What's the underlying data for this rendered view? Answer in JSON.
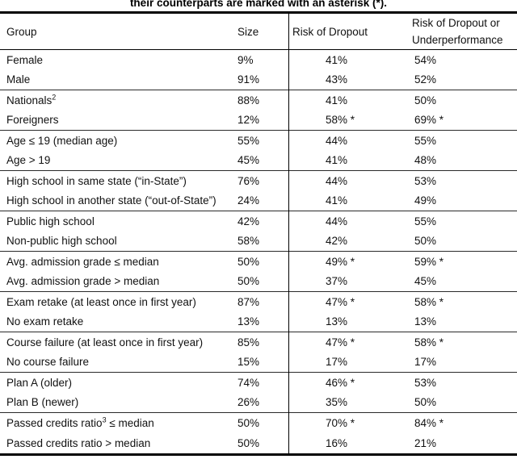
{
  "caption": "their counterparts are marked with an asterisk (*).",
  "table": {
    "headers": {
      "group": "Group",
      "size": "Size",
      "risk_dropout": "Risk of Dropout",
      "risk_dropout_underperf": "Risk of Dropout or Underperformance"
    },
    "groups": [
      {
        "rows": [
          {
            "pre": "Female",
            "sup": "",
            "post": "",
            "size": "9%",
            "risk": "41%",
            "risk_u": "54%"
          },
          {
            "pre": "Male",
            "sup": "",
            "post": "",
            "size": "91%",
            "risk": "43%",
            "risk_u": "52%"
          }
        ]
      },
      {
        "rows": [
          {
            "pre": "Nationals",
            "sup": "2",
            "post": "",
            "size": "88%",
            "risk": "41%",
            "risk_u": "50%"
          },
          {
            "pre": "Foreigners",
            "sup": "",
            "post": "",
            "size": "12%",
            "risk": "58% *",
            "risk_u": "69% *"
          }
        ]
      },
      {
        "rows": [
          {
            "pre": "Age ≤ 19 (median age)",
            "sup": "",
            "post": "",
            "size": "55%",
            "risk": "44%",
            "risk_u": "55%"
          },
          {
            "pre": "Age > 19",
            "sup": "",
            "post": "",
            "size": "45%",
            "risk": "41%",
            "risk_u": "48%"
          }
        ]
      },
      {
        "rows": [
          {
            "pre": "High school in same state (“in-State”)",
            "sup": "",
            "post": "",
            "size": "76%",
            "risk": "44%",
            "risk_u": "53%"
          },
          {
            "pre": "High school in another state (“out-of-State”)",
            "sup": "",
            "post": "",
            "size": "24%",
            "risk": "41%",
            "risk_u": "49%"
          }
        ]
      },
      {
        "rows": [
          {
            "pre": "Public high school",
            "sup": "",
            "post": "",
            "size": "42%",
            "risk": "44%",
            "risk_u": "55%"
          },
          {
            "pre": "Non-public high school",
            "sup": "",
            "post": "",
            "size": "58%",
            "risk": "42%",
            "risk_u": "50%"
          }
        ]
      },
      {
        "rows": [
          {
            "pre": "Avg. admission grade ≤ median",
            "sup": "",
            "post": "",
            "size": "50%",
            "risk": "49% *",
            "risk_u": "59% *"
          },
          {
            "pre": "Avg. admission grade > median",
            "sup": "",
            "post": "",
            "size": "50%",
            "risk": "37%",
            "risk_u": "45%"
          }
        ]
      },
      {
        "rows": [
          {
            "pre": "Exam retake (at least once in first year)",
            "sup": "",
            "post": "",
            "size": "87%",
            "risk": "47% *",
            "risk_u": "58% *"
          },
          {
            "pre": "No exam retake",
            "sup": "",
            "post": "",
            "size": "13%",
            "risk": "13%",
            "risk_u": "13%"
          }
        ]
      },
      {
        "rows": [
          {
            "pre": "Course failure (at least once in first year)",
            "sup": "",
            "post": "",
            "size": "85%",
            "risk": "47% *",
            "risk_u": "58% *"
          },
          {
            "pre": "No course failure",
            "sup": "",
            "post": "",
            "size": "15%",
            "risk": "17%",
            "risk_u": "17%"
          }
        ]
      },
      {
        "rows": [
          {
            "pre": "Plan A (older)",
            "sup": "",
            "post": "",
            "size": "74%",
            "risk": "46% *",
            "risk_u": "53%"
          },
          {
            "pre": "Plan B (newer)",
            "sup": "",
            "post": "",
            "size": "26%",
            "risk": "35%",
            "risk_u": "50%"
          }
        ]
      },
      {
        "rows": [
          {
            "pre": "Passed credits ratio",
            "sup": "3",
            "post": " ≤ median",
            "size": "50%",
            "risk": "70% *",
            "risk_u": "84% *"
          },
          {
            "pre": "Passed credits ratio > median",
            "sup": "",
            "post": "",
            "size": "50%",
            "risk": "16%",
            "risk_u": "21%"
          }
        ]
      }
    ]
  }
}
